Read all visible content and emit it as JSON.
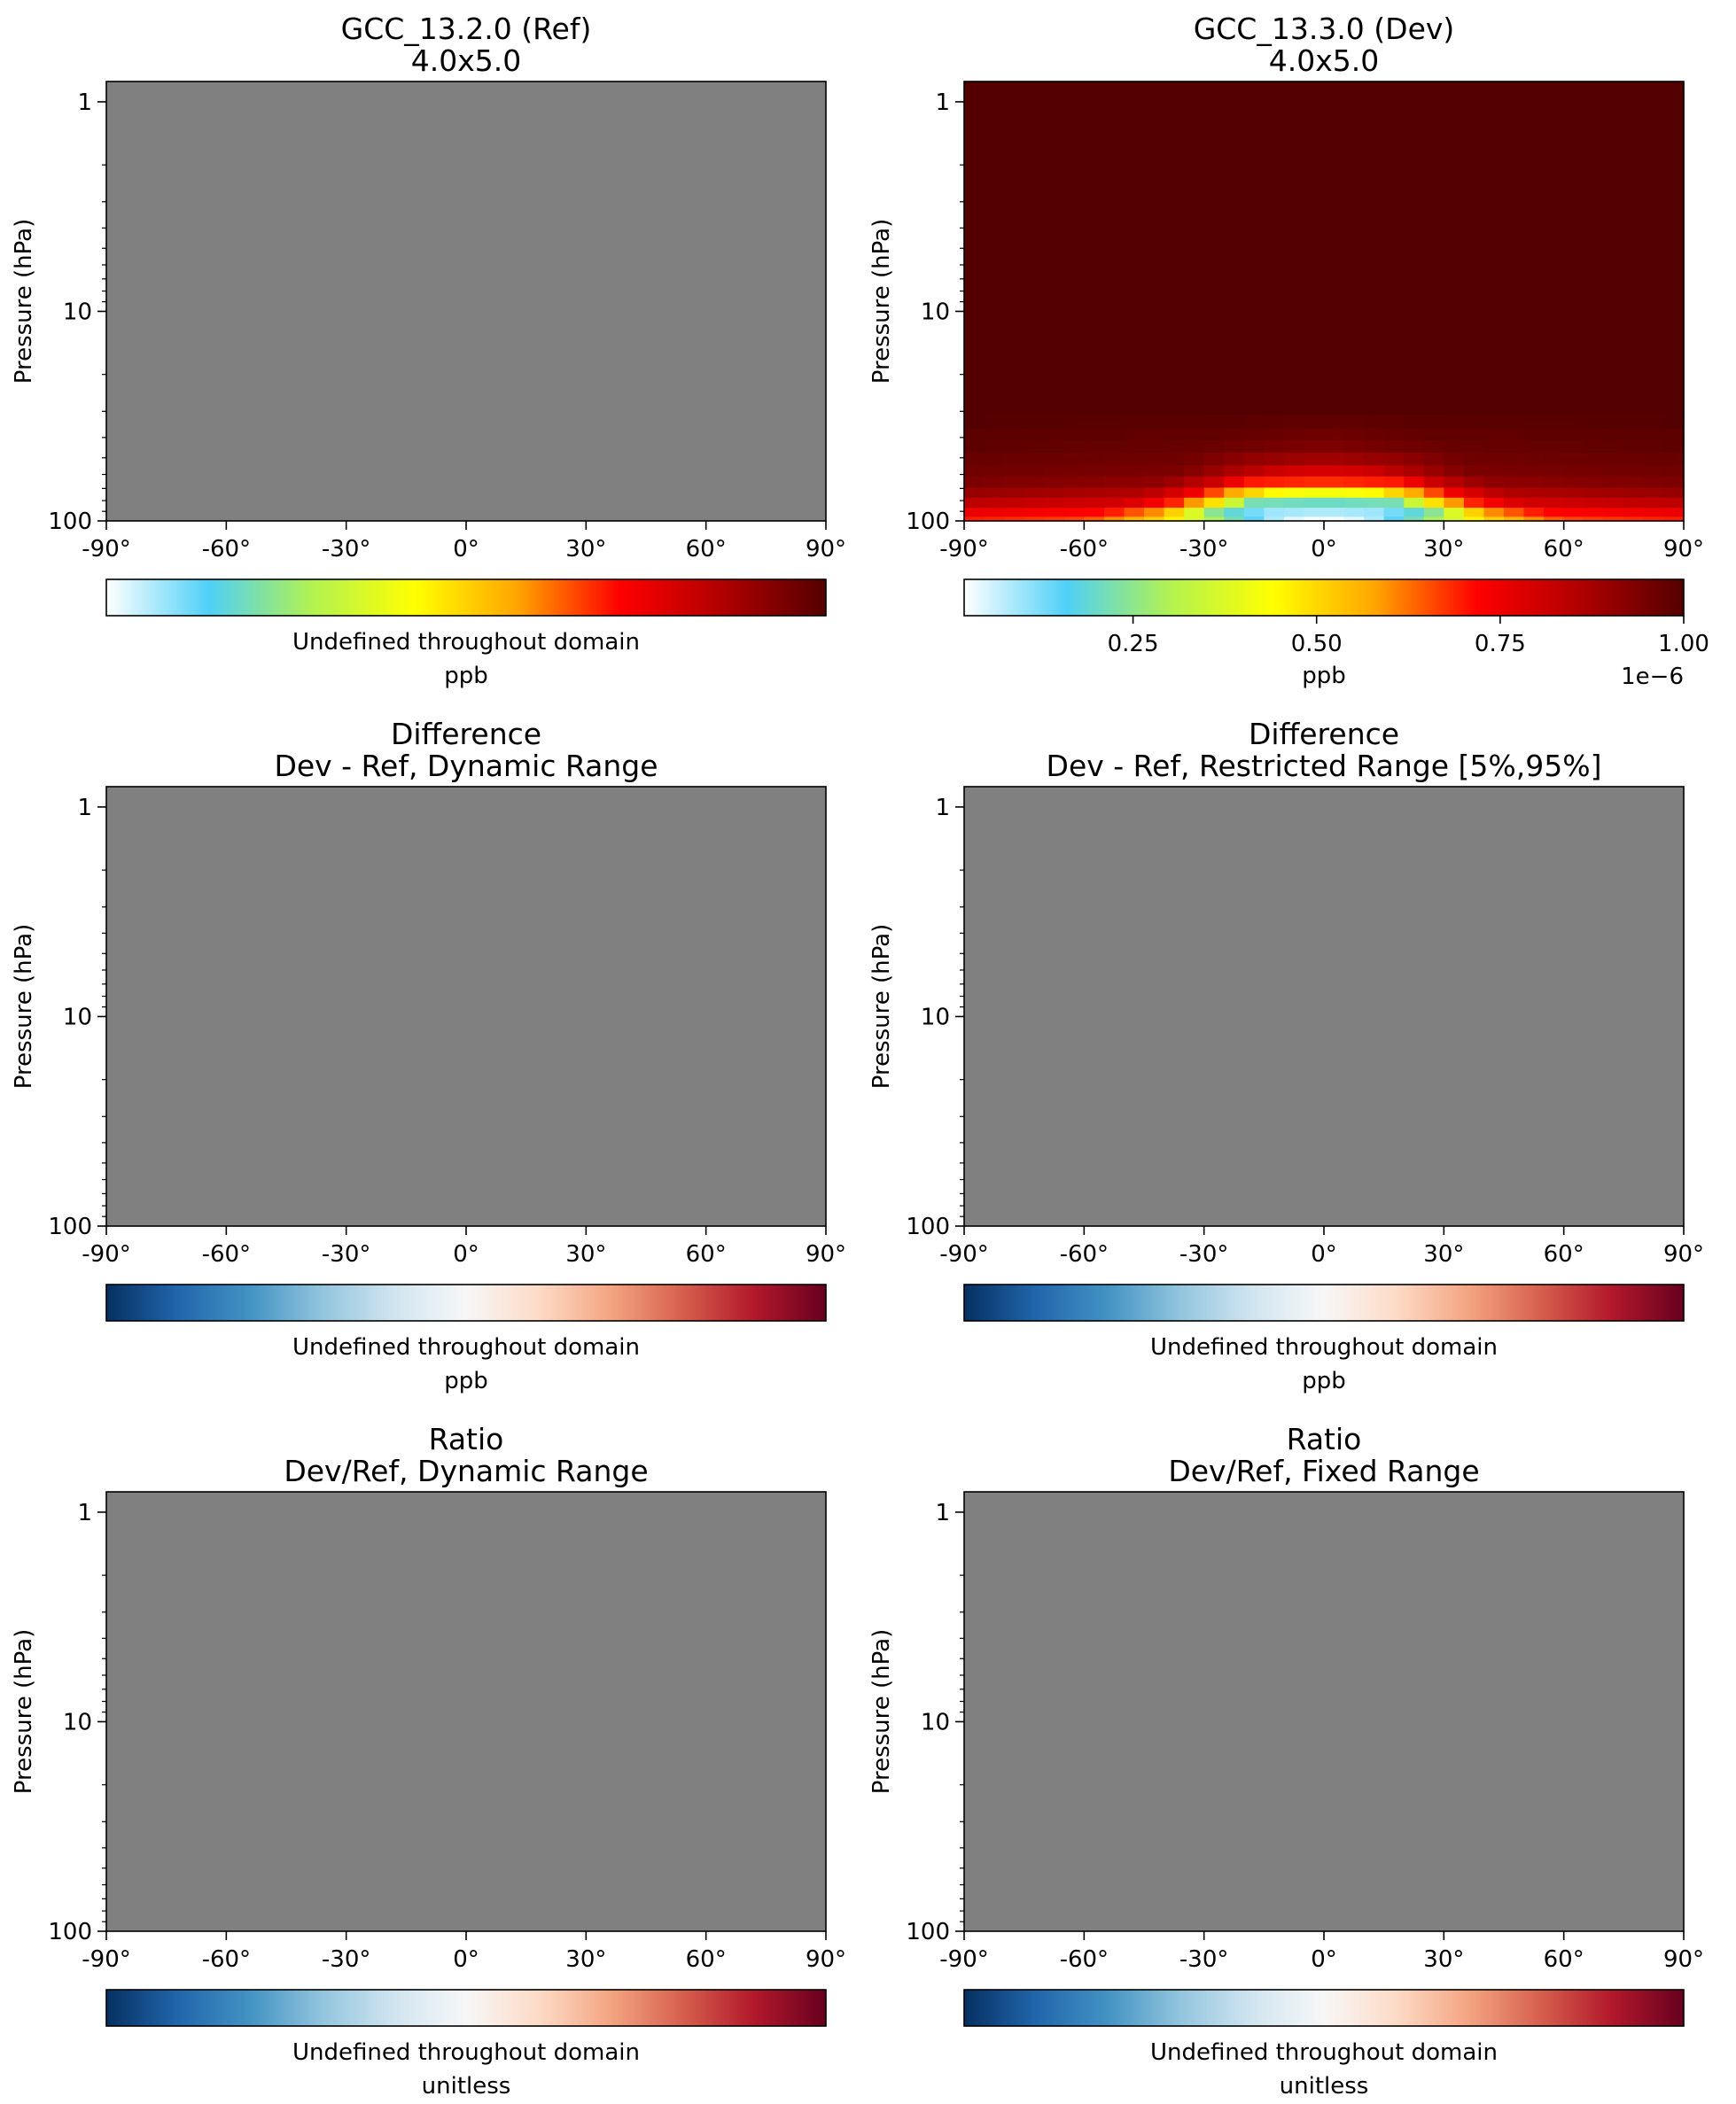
{
  "colors": {
    "undefined_fill": "#808080",
    "frame": "#000000",
    "cmap_conc": [
      "#ffffff",
      "#4fd0f7",
      "#b2f251",
      "#ffff00",
      "#ffa500",
      "#ff0000",
      "#b00000",
      "#550000"
    ],
    "cmap_diff": [
      "#053061",
      "#2166ac",
      "#4393c3",
      "#92c5de",
      "#d1e5f0",
      "#f7f7f7",
      "#fddbc7",
      "#f4a582",
      "#d6604d",
      "#b2182b",
      "#67001f"
    ]
  },
  "chart_data": [
    {
      "type": "heatmap",
      "id": "ref",
      "title": [
        "GCC_13.2.0 (Ref)",
        "4.0x5.0"
      ],
      "xlabel": "",
      "ylabel": "Pressure (hPa)",
      "xlim": [
        -90,
        90
      ],
      "ylim": [
        100,
        0.8
      ],
      "yscale": "log",
      "xticks": [
        "-90°",
        "-60°",
        "-30°",
        "0°",
        "30°",
        "60°",
        "90°"
      ],
      "yticks": [
        "1",
        "10",
        "100"
      ],
      "values": "undefined",
      "colorbar": {
        "cmap": "cmap_conc",
        "label": "Undefined throughout domain",
        "units": "ppb",
        "ticks": [],
        "offset": ""
      }
    },
    {
      "type": "heatmap",
      "id": "dev",
      "title": [
        "GCC_13.3.0 (Dev)",
        "4.0x5.0"
      ],
      "xlabel": "",
      "ylabel": "Pressure (hPa)",
      "xlim": [
        -90,
        90
      ],
      "ylim": [
        100,
        0.8
      ],
      "yscale": "log",
      "xticks": [
        "-90°",
        "-60°",
        "-30°",
        "0°",
        "30°",
        "60°",
        "90°"
      ],
      "yticks": [
        "1",
        "10",
        "100"
      ],
      "values": {
        "x_res_deg": 5,
        "levels": [
          {
            "p_top": 95,
            "p_bot": 115,
            "profile": [
              [
                -90,
                0.7
              ],
              [
                -60,
                0.66
              ],
              [
                -40,
                0.5
              ],
              [
                -25,
                0.25
              ],
              [
                -10,
                0.05
              ],
              [
                0,
                0.02
              ],
              [
                10,
                0.05
              ],
              [
                25,
                0.25
              ],
              [
                40,
                0.5
              ],
              [
                60,
                0.66
              ],
              [
                90,
                0.7
              ]
            ]
          },
          {
            "p_top": 86,
            "p_bot": 95,
            "profile": [
              [
                -90,
                0.76
              ],
              [
                -55,
                0.72
              ],
              [
                -40,
                0.58
              ],
              [
                -28,
                0.25
              ],
              [
                -15,
                0.1
              ],
              [
                0,
                0.08
              ],
              [
                15,
                0.1
              ],
              [
                28,
                0.25
              ],
              [
                40,
                0.58
              ],
              [
                55,
                0.72
              ],
              [
                90,
                0.76
              ]
            ]
          },
          {
            "p_top": 77,
            "p_bot": 86,
            "profile": [
              [
                -90,
                0.84
              ],
              [
                -50,
                0.8
              ],
              [
                -38,
                0.7
              ],
              [
                -28,
                0.5
              ],
              [
                -18,
                0.22
              ],
              [
                0,
                0.2
              ],
              [
                18,
                0.22
              ],
              [
                28,
                0.5
              ],
              [
                38,
                0.7
              ],
              [
                50,
                0.8
              ],
              [
                90,
                0.84
              ]
            ]
          },
          {
            "p_top": 69,
            "p_bot": 77,
            "profile": [
              [
                -90,
                0.9
              ],
              [
                -45,
                0.86
              ],
              [
                -32,
                0.74
              ],
              [
                -22,
                0.56
              ],
              [
                -12,
                0.44
              ],
              [
                0,
                0.42
              ],
              [
                12,
                0.44
              ],
              [
                22,
                0.56
              ],
              [
                32,
                0.74
              ],
              [
                45,
                0.86
              ],
              [
                90,
                0.9
              ]
            ]
          },
          {
            "p_top": 61,
            "p_bot": 69,
            "profile": [
              [
                -90,
                0.94
              ],
              [
                -40,
                0.91
              ],
              [
                -28,
                0.82
              ],
              [
                -18,
                0.7
              ],
              [
                0,
                0.68
              ],
              [
                18,
                0.7
              ],
              [
                28,
                0.82
              ],
              [
                40,
                0.91
              ],
              [
                90,
                0.94
              ]
            ]
          },
          {
            "p_top": 54,
            "p_bot": 61,
            "profile": [
              [
                -90,
                0.96
              ],
              [
                -35,
                0.94
              ],
              [
                -25,
                0.88
              ],
              [
                -10,
                0.8
              ],
              [
                0,
                0.79
              ],
              [
                10,
                0.8
              ],
              [
                25,
                0.88
              ],
              [
                35,
                0.94
              ],
              [
                90,
                0.96
              ]
            ]
          },
          {
            "p_top": 47,
            "p_bot": 54,
            "profile": [
              [
                -90,
                0.97
              ],
              [
                -35,
                0.96
              ],
              [
                -20,
                0.91
              ],
              [
                0,
                0.88
              ],
              [
                20,
                0.91
              ],
              [
                35,
                0.96
              ],
              [
                90,
                0.97
              ]
            ]
          },
          {
            "p_top": 41,
            "p_bot": 47,
            "profile": [
              [
                -90,
                0.985
              ],
              [
                -30,
                0.97
              ],
              [
                0,
                0.935
              ],
              [
                30,
                0.97
              ],
              [
                90,
                0.985
              ]
            ]
          },
          {
            "p_top": 36,
            "p_bot": 41,
            "profile": [
              [
                -90,
                0.99
              ],
              [
                -25,
                0.98
              ],
              [
                0,
                0.96
              ],
              [
                25,
                0.98
              ],
              [
                90,
                0.99
              ]
            ]
          },
          {
            "p_top": 31,
            "p_bot": 36,
            "profile": [
              [
                -90,
                1.0
              ],
              [
                -20,
                0.99
              ],
              [
                0,
                0.98
              ],
              [
                20,
                0.99
              ],
              [
                90,
                1.0
              ]
            ]
          },
          {
            "p_top": 0.8,
            "p_bot": 31,
            "profile": [
              [
                -90,
                1.0
              ],
              [
                90,
                1.0
              ]
            ]
          }
        ],
        "scale": "1e-6"
      },
      "colorbar": {
        "cmap": "cmap_conc",
        "label": "",
        "units": "ppb",
        "vmin": 0.02,
        "vmax": 1.0,
        "ticks": [
          "0.25",
          "0.50",
          "0.75",
          "1.00"
        ],
        "tick_values": [
          0.25,
          0.5,
          0.75,
          1.0
        ],
        "offset": "1e−6"
      }
    },
    {
      "type": "heatmap",
      "id": "diff-dynamic",
      "title": [
        "Difference",
        "Dev - Ref, Dynamic Range"
      ],
      "xlabel": "",
      "ylabel": "Pressure (hPa)",
      "xlim": [
        -90,
        90
      ],
      "ylim": [
        100,
        0.8
      ],
      "yscale": "log",
      "xticks": [
        "-90°",
        "-60°",
        "-30°",
        "0°",
        "30°",
        "60°",
        "90°"
      ],
      "yticks": [
        "1",
        "10",
        "100"
      ],
      "values": "undefined",
      "colorbar": {
        "cmap": "cmap_diff",
        "label": "Undefined throughout domain",
        "units": "ppb",
        "ticks": [],
        "offset": ""
      }
    },
    {
      "type": "heatmap",
      "id": "diff-restricted",
      "title": [
        "Difference",
        "Dev - Ref, Restricted Range [5%,95%]"
      ],
      "xlabel": "",
      "ylabel": "Pressure (hPa)",
      "xlim": [
        -90,
        90
      ],
      "ylim": [
        100,
        0.8
      ],
      "yscale": "log",
      "xticks": [
        "-90°",
        "-60°",
        "-30°",
        "0°",
        "30°",
        "60°",
        "90°"
      ],
      "yticks": [
        "1",
        "10",
        "100"
      ],
      "values": "undefined",
      "colorbar": {
        "cmap": "cmap_diff",
        "label": "Undefined throughout domain",
        "units": "ppb",
        "ticks": [],
        "offset": ""
      }
    },
    {
      "type": "heatmap",
      "id": "ratio-dynamic",
      "title": [
        "Ratio",
        "Dev/Ref, Dynamic Range"
      ],
      "xlabel": "",
      "ylabel": "Pressure (hPa)",
      "xlim": [
        -90,
        90
      ],
      "ylim": [
        100,
        0.8
      ],
      "yscale": "log",
      "xticks": [
        "-90°",
        "-60°",
        "-30°",
        "0°",
        "30°",
        "60°",
        "90°"
      ],
      "yticks": [
        "1",
        "10",
        "100"
      ],
      "values": "undefined",
      "colorbar": {
        "cmap": "cmap_diff",
        "label": "Undefined throughout domain",
        "units": "unitless",
        "ticks": [],
        "offset": ""
      }
    },
    {
      "type": "heatmap",
      "id": "ratio-fixed",
      "title": [
        "Ratio",
        "Dev/Ref, Fixed Range"
      ],
      "xlabel": "",
      "ylabel": "Pressure (hPa)",
      "xlim": [
        -90,
        90
      ],
      "ylim": [
        100,
        0.8
      ],
      "yscale": "log",
      "xticks": [
        "-90°",
        "-60°",
        "-30°",
        "0°",
        "30°",
        "60°",
        "90°"
      ],
      "yticks": [
        "1",
        "10",
        "100"
      ],
      "values": "undefined",
      "colorbar": {
        "cmap": "cmap_diff",
        "label": "Undefined throughout domain",
        "units": "unitless",
        "ticks": [],
        "offset": ""
      }
    }
  ]
}
